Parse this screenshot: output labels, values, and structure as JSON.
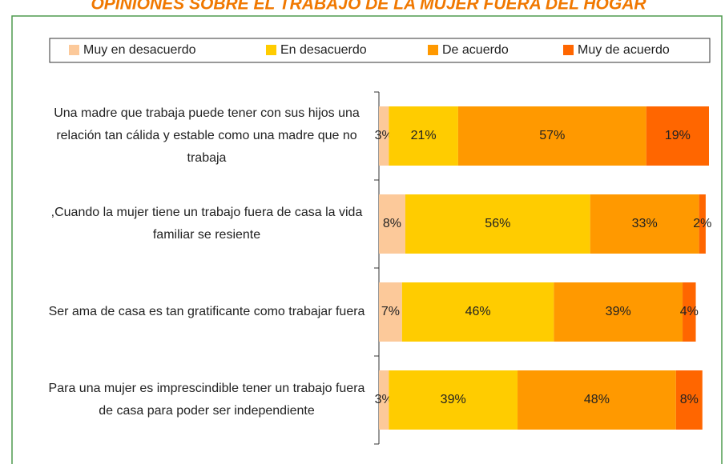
{
  "chart_data": {
    "type": "stacked-bar-horizontal",
    "title": "OPINIONES SOBRE EL TRABAJO DE LA MUJER FUERA DEL HOGAR",
    "categories": [
      "Una madre que trabaja puede tener con sus hijos una relación tan cálida y estable como una madre que no trabaja",
      ",Cuando la mujer tiene un trabajo fuera de casa la vida familiar se resiente",
      "Ser ama de casa es tan gratificante como trabajar fuera",
      "Para una mujer es imprescindible tener un trabajo fuera de casa para poder ser independiente"
    ],
    "series": [
      {
        "name": "Muy en desacuerdo",
        "color": "#fcc99a",
        "values": [
          3,
          8,
          7,
          3
        ],
        "value_labels": [
          "3%",
          "8%",
          "7%",
          "3%"
        ]
      },
      {
        "name": "En desacuerdo",
        "color": "#ffcc00",
        "values": [
          21,
          56,
          46,
          39
        ],
        "value_labels": [
          "21%",
          "56%",
          "46%",
          "39%"
        ]
      },
      {
        "name": "De acuerdo",
        "color": "#ff9900",
        "values": [
          57,
          33,
          39,
          48
        ],
        "value_labels": [
          "57%",
          "33%",
          "39%",
          "48%"
        ]
      },
      {
        "name": "Muy de acuerdo",
        "color": "#ff6600",
        "values": [
          19,
          2,
          4,
          8
        ],
        "value_labels": [
          "19%",
          "2%",
          "4%",
          "8%"
        ]
      }
    ],
    "xlim": [
      0,
      100
    ],
    "legend": "top"
  }
}
